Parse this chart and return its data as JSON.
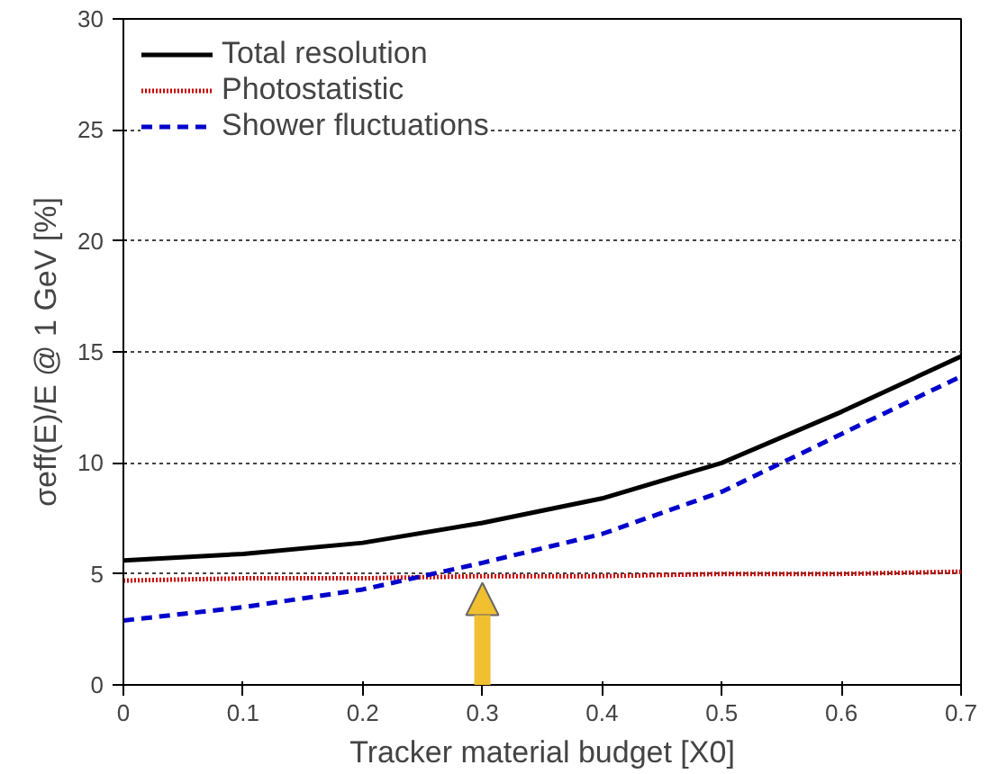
{
  "chart_data": {
    "type": "line",
    "xlabel": "Tracker material budget [X0]",
    "ylabel": "σeff(E)/E @ 1 GeV [%]",
    "x": [
      0,
      0.1,
      0.2,
      0.3,
      0.4,
      0.5,
      0.6,
      0.7
    ],
    "series": [
      {
        "name": "Total resolution",
        "color": "#000000",
        "line_style": "solid",
        "values": [
          5.6,
          5.9,
          6.4,
          7.3,
          8.4,
          10.0,
          12.3,
          14.8
        ]
      },
      {
        "name": "Photostatistic",
        "color": "#cc0000",
        "line_style": "dotted",
        "values": [
          4.7,
          4.8,
          4.8,
          4.9,
          4.9,
          5.0,
          5.0,
          5.1
        ]
      },
      {
        "name": "Shower fluctuations",
        "color": "#0000cc",
        "line_style": "dashed",
        "values": [
          2.9,
          3.5,
          4.3,
          5.5,
          6.8,
          8.7,
          11.3,
          13.9
        ]
      }
    ],
    "xlim": [
      0,
      0.7
    ],
    "ylim": [
      0,
      30
    ],
    "xticks": [
      0,
      0.1,
      0.2,
      0.3,
      0.4,
      0.5,
      0.6,
      0.7
    ],
    "yticks": [
      0,
      5,
      10,
      15,
      20,
      25,
      30
    ],
    "grid": "y",
    "legend": "top left",
    "marker": "none"
  }
}
